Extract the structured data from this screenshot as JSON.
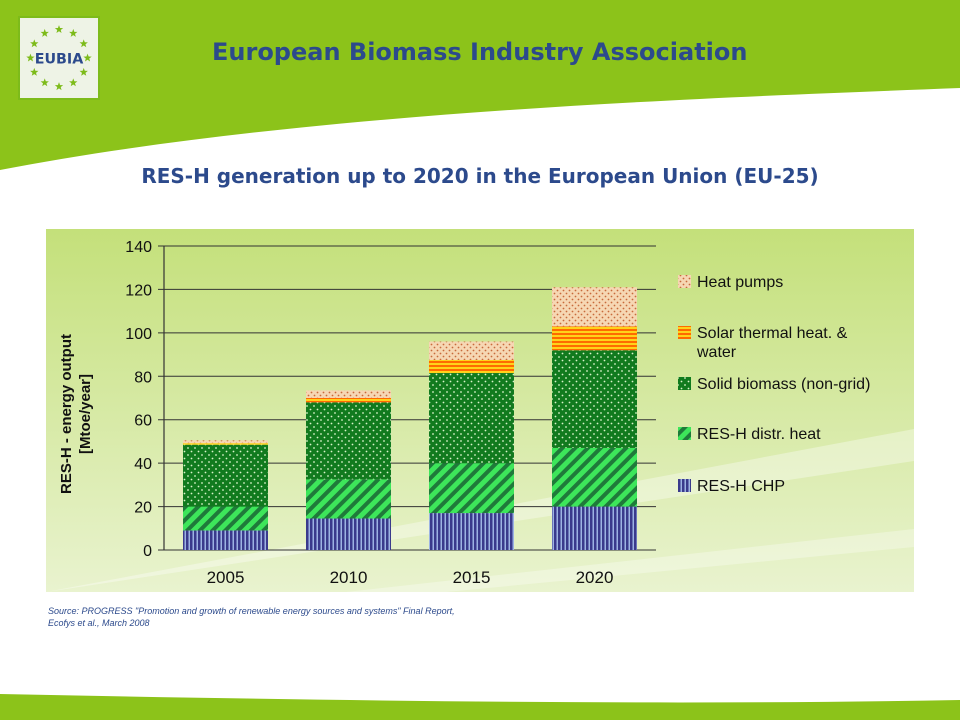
{
  "header": {
    "org_title": "European Biomass Industry Association",
    "logo_text": "EUBIA"
  },
  "chart_title": "RES-H generation up to 2020 in the European Union (EU-25)",
  "source": {
    "line1": "Source: PROGRESS \"Promotion and growth of renewable energy sources and systems\" Final Report,",
    "line2": "Ecofys et al., March 2008"
  },
  "colors": {
    "brand_green": "#8cc31a",
    "brand_blue": "#2c4a8c",
    "chp": "#3a3a8c",
    "distr_heat": "#33dd55",
    "solid_biomass": "#0e7a1a",
    "solar_thermal": "#ff7a00",
    "heat_pumps": "#f4cfa6"
  },
  "chart_data": {
    "type": "bar",
    "stacked": true,
    "title": "RES-H generation up to 2020 in the European Union (EU-25)",
    "ylabel": "RES-H - energy output [Mtoe/year]",
    "xlabel": "",
    "ylim": [
      0,
      140
    ],
    "yticks": [
      "0",
      "20",
      "40",
      "60",
      "80",
      "100",
      "120",
      "140"
    ],
    "grid": true,
    "legend": "right",
    "categories": [
      "2005",
      "2010",
      "2015",
      "2020"
    ],
    "series": [
      {
        "name": "RES-H CHP",
        "values": [
          9,
          14.5,
          17,
          20
        ]
      },
      {
        "name": "RES-H distr. heat",
        "values": [
          11,
          18,
          23,
          27
        ]
      },
      {
        "name": "Solid biomass (non-grid)",
        "values": [
          28.5,
          35.5,
          41.5,
          45
        ]
      },
      {
        "name": "Solar thermal heat. & water",
        "values": [
          0.7,
          2,
          6,
          11
        ]
      },
      {
        "name": "Heat pumps",
        "values": [
          1.3,
          3.5,
          8.5,
          18
        ]
      }
    ]
  }
}
